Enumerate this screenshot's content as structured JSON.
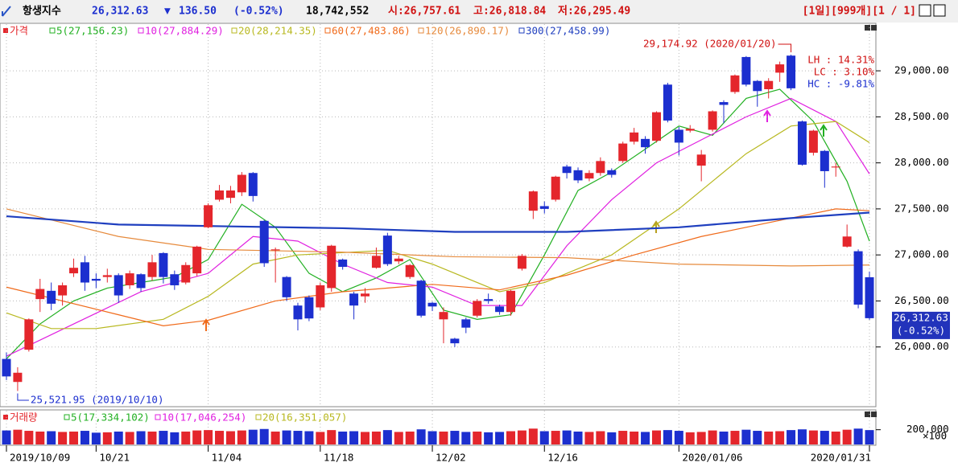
{
  "header": {
    "name": "항생지수",
    "price": "26,312.63",
    "arrow": "▼",
    "change": "136.50",
    "change_pct": "(-0.52%)",
    "volume": "18,742,552",
    "open": "시:26,757.61",
    "high": "고:26,818.84",
    "low": "저:26,295.49",
    "period": "[1일][999개][1 / 1]"
  },
  "chart_data": {
    "type": "candlestick",
    "price_label": "가격",
    "categories": [
      "2019/10/09",
      null,
      null,
      null,
      null,
      null,
      null,
      null,
      "10/21",
      null,
      null,
      null,
      null,
      null,
      null,
      null,
      null,
      null,
      "11/04",
      null,
      null,
      null,
      null,
      null,
      null,
      null,
      null,
      null,
      "11/18",
      null,
      null,
      null,
      null,
      null,
      null,
      null,
      null,
      null,
      "12/02",
      null,
      null,
      null,
      null,
      null,
      null,
      null,
      null,
      null,
      "12/16",
      null,
      null,
      null,
      null,
      null,
      null,
      null,
      null,
      null,
      null,
      null,
      "2020/01/06",
      null,
      null,
      null,
      null,
      null,
      null,
      null,
      null,
      null,
      null,
      null,
      null,
      null,
      null,
      null,
      null,
      "2020/01/31"
    ],
    "open": [
      25870,
      25620,
      25970,
      26520,
      26610,
      26560,
      26800,
      26920,
      26740,
      26760,
      26780,
      26670,
      26790,
      26760,
      27020,
      26790,
      26700,
      26800,
      27300,
      27600,
      27620,
      27680,
      27890,
      27370,
      27050,
      26760,
      26450,
      26540,
      26430,
      26640,
      26950,
      26580,
      26550,
      26860,
      27210,
      26930,
      26760,
      26720,
      26480,
      26300,
      26090,
      26300,
      26340,
      26520,
      26440,
      26380,
      26850,
      27480,
      27530,
      27600,
      27960,
      27920,
      27830,
      27890,
      27920,
      28020,
      28230,
      28260,
      28240,
      28850,
      28360,
      28350,
      27970,
      28360,
      28660,
      28770,
      29150,
      28890,
      28800,
      28980,
      29165,
      28450,
      28110,
      28130,
      27950,
      27090,
      27040,
      26757.61
    ],
    "high": [
      25940,
      25780,
      26310,
      26740,
      26700,
      26700,
      26960,
      26990,
      26800,
      26850,
      26800,
      26830,
      26800,
      27000,
      27030,
      26830,
      26920,
      27100,
      27560,
      27760,
      27750,
      27900,
      27900,
      27380,
      27080,
      26770,
      26480,
      26560,
      26700,
      27110,
      26960,
      26600,
      26640,
      27080,
      27240,
      26990,
      26900,
      26730,
      26490,
      26430,
      26100,
      26320,
      26520,
      26580,
      26460,
      26620,
      27010,
      27700,
      27580,
      27860,
      27980,
      27950,
      27920,
      28060,
      27940,
      28230,
      28380,
      28290,
      28560,
      28870,
      28390,
      28410,
      28140,
      28570,
      28680,
      28960,
      29160,
      28900,
      28920,
      29100,
      29174.92,
      28460,
      28360,
      28140,
      28000,
      27330,
      27060,
      26818.84
    ],
    "low": [
      25640,
      25521.95,
      25950,
      26380,
      26400,
      26450,
      26760,
      26610,
      26640,
      26700,
      26480,
      26630,
      26600,
      26720,
      26690,
      26620,
      26680,
      26770,
      27290,
      27580,
      27560,
      27640,
      27580,
      26870,
      26700,
      26500,
      26180,
      26280,
      26400,
      26600,
      26840,
      26300,
      26480,
      26850,
      26880,
      26900,
      26740,
      26320,
      26390,
      26040,
      26000,
      26150,
      26320,
      26470,
      26350,
      26340,
      26830,
      27390,
      27450,
      27580,
      27830,
      27780,
      27800,
      27860,
      27840,
      28000,
      28200,
      28100,
      28220,
      28440,
      28080,
      28330,
      27800,
      28340,
      28430,
      28750,
      28830,
      28610,
      28700,
      28880,
      28790,
      27970,
      28080,
      27730,
      27850,
      27080,
      26420,
      26295.49
    ],
    "close": [
      25680,
      25720,
      26300,
      26630,
      26470,
      26670,
      26860,
      26700,
      26720,
      26780,
      26560,
      26800,
      26640,
      26920,
      26760,
      26670,
      26890,
      27090,
      27540,
      27700,
      27700,
      27870,
      27640,
      26910,
      27060,
      26540,
      26300,
      26310,
      26670,
      27100,
      26870,
      26450,
      26580,
      26990,
      26900,
      26960,
      26890,
      26340,
      26440,
      26380,
      26040,
      26210,
      26500,
      26500,
      26380,
      26610,
      26990,
      27690,
      27500,
      27850,
      27890,
      27810,
      27890,
      28020,
      27870,
      28210,
      28330,
      28170,
      28550,
      28460,
      28220,
      28370,
      28090,
      28560,
      28630,
      28950,
      28850,
      28780,
      28890,
      29070,
      28810,
      27980,
      28350,
      27910,
      27960,
      27200,
      26460,
      26312.63
    ],
    "colors": {
      "up": "#e4262c",
      "down": "#1c2fcf"
    },
    "ylim": [
      25360,
      29420
    ],
    "yticks": [
      {
        "value": 26000,
        "label": "26,000.00"
      },
      {
        "value": 26500,
        "label": "26,500.00"
      },
      {
        "value": 27000,
        "label": "27,000.00"
      },
      {
        "value": 27500,
        "label": "27,500.00"
      },
      {
        "value": 28000,
        "label": "28,000.00"
      },
      {
        "value": 28500,
        "label": "28,500.00"
      },
      {
        "value": 29000,
        "label": "29,000.00"
      }
    ],
    "grid": true,
    "ma": [
      {
        "name": "5(27,156.23)",
        "color": "#22b022",
        "x": [
          0,
          3,
          6,
          9,
          12,
          15,
          18,
          21,
          24,
          27,
          30,
          33,
          36,
          39,
          42,
          45,
          48,
          51,
          54,
          57,
          60,
          63,
          66,
          69,
          72,
          75,
          77
        ],
        "values": [
          25870,
          26250,
          26500,
          26640,
          26700,
          26760,
          26950,
          27550,
          27300,
          26800,
          26600,
          26750,
          26950,
          26400,
          26300,
          26350,
          27000,
          27700,
          27900,
          28150,
          28400,
          28300,
          28700,
          28800,
          28450,
          27800,
          27150
        ]
      },
      {
        "name": "10(27,884.29)",
        "color": "#e020e0",
        "x": [
          0,
          6,
          12,
          18,
          22,
          26,
          30,
          34,
          38,
          42,
          46,
          50,
          54,
          58,
          62,
          66,
          70,
          74,
          77
        ],
        "values": [
          25900,
          26250,
          26600,
          26800,
          27200,
          27150,
          26900,
          26700,
          26650,
          26450,
          26450,
          27100,
          27600,
          28000,
          28250,
          28500,
          28700,
          28450,
          27880
        ]
      },
      {
        "name": "20(28,214.35)",
        "color": "#b8b820",
        "x": [
          0,
          4,
          8,
          14,
          18,
          22,
          26,
          34,
          38,
          44,
          48,
          54,
          60,
          66,
          70,
          74,
          77
        ],
        "values": [
          26370,
          26200,
          26200,
          26300,
          26550,
          26900,
          27000,
          27050,
          26900,
          26600,
          26700,
          27000,
          27500,
          28100,
          28400,
          28450,
          28220
        ]
      },
      {
        "name": "60(27,483.86)",
        "color": "#f06a1a",
        "x": [
          0,
          10,
          14,
          18,
          24,
          30,
          38,
          44,
          50,
          56,
          62,
          68,
          74,
          77
        ],
        "values": [
          26650,
          26350,
          26230,
          26290,
          26500,
          26600,
          26680,
          26620,
          26780,
          27000,
          27200,
          27350,
          27500,
          27480
        ]
      },
      {
        "name": "120(26,890.17)",
        "color": "#e68a3c",
        "x": [
          0,
          10,
          18,
          30,
          40,
          50,
          60,
          70,
          77
        ],
        "values": [
          27500,
          27200,
          27060,
          27030,
          26980,
          26970,
          26900,
          26880,
          26890
        ]
      },
      {
        "name": "300(27,458.99)",
        "color": "#1f3fbf",
        "x": [
          0,
          10,
          20,
          30,
          40,
          50,
          60,
          70,
          77
        ],
        "values": [
          27420,
          27330,
          27310,
          27290,
          27250,
          27250,
          27300,
          27400,
          27460
        ]
      }
    ],
    "annotations": {
      "high_label": "29,174.92 (2020/01/20)",
      "low_label": "25,521.95 (2019/10/10)",
      "lh": "LH : 14.31%",
      "lc": "LC :  3.10%",
      "hc": "HC : -9.81%",
      "last_price": "26,312.63",
      "last_pct": "(-0.52%)"
    },
    "volume": {
      "label": "거래량",
      "legend": [
        {
          "name": "5(17,334,102)",
          "color": "#22b022"
        },
        {
          "name": "10(17,046,254)",
          "color": "#e020e0"
        },
        {
          "name": "20(16,351,057)",
          "color": "#b8b820"
        }
      ],
      "values": [
        190000,
        200000,
        185000,
        175000,
        180000,
        170000,
        175000,
        185000,
        160000,
        165000,
        175000,
        170000,
        180000,
        175000,
        185000,
        165000,
        175000,
        190000,
        195000,
        185000,
        180000,
        190000,
        200000,
        210000,
        175000,
        190000,
        185000,
        180000,
        170000,
        195000,
        175000,
        180000,
        170000,
        175000,
        195000,
        170000,
        175000,
        205000,
        180000,
        175000,
        185000,
        170000,
        175000,
        165000,
        170000,
        180000,
        190000,
        215000,
        180000,
        185000,
        190000,
        175000,
        170000,
        180000,
        165000,
        185000,
        175000,
        170000,
        190000,
        195000,
        185000,
        165000,
        170000,
        190000,
        175000,
        185000,
        200000,
        185000,
        175000,
        180000,
        195000,
        205000,
        190000,
        185000,
        175000,
        200000,
        215000,
        195000
      ],
      "ylim": [
        0,
        360000
      ],
      "yticks": [
        {
          "value": 200000,
          "label": "200,000"
        }
      ],
      "unit": "×100"
    }
  }
}
